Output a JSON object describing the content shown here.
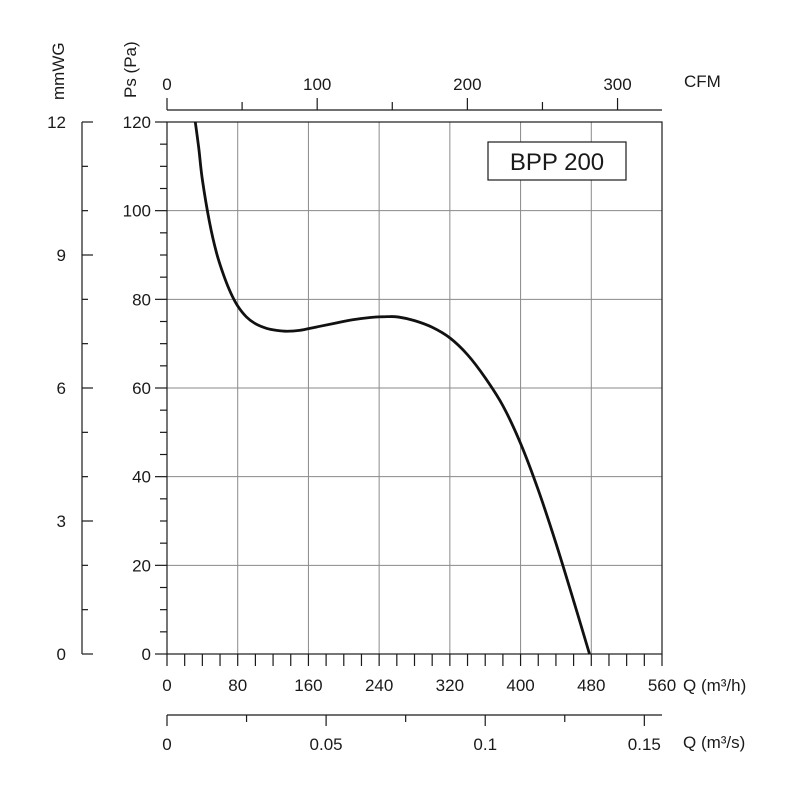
{
  "chart_data": {
    "type": "line",
    "title": "BPP 200",
    "series": [
      {
        "name": "BPP 200",
        "x": [
          32,
          36,
          40,
          48,
          56,
          64,
          72,
          80,
          90,
          100,
          112,
          124,
          136,
          150,
          170,
          190,
          210,
          230,
          250,
          262,
          280,
          300,
          320,
          340,
          360,
          380,
          400,
          420,
          440,
          460,
          478
        ],
        "y": [
          120,
          114,
          107,
          97.5,
          90.5,
          85.5,
          81.5,
          78.5,
          76,
          74.5,
          73.5,
          73,
          72.8,
          73,
          73.8,
          74.6,
          75.4,
          75.9,
          76.1,
          76,
          75.2,
          73.7,
          71.3,
          67.5,
          62.3,
          56,
          47.5,
          37,
          25,
          12,
          0
        ]
      }
    ],
    "left_axis": {
      "label": "Ps (Pa)",
      "ylim": [
        0,
        120
      ],
      "ticks": [
        0,
        20,
        40,
        60,
        80,
        100,
        120
      ]
    },
    "left_outer_axis": {
      "label": "mmWG",
      "range": [
        0,
        12
      ],
      "ticks": [
        "0",
        "3",
        "6",
        "9",
        "12"
      ]
    },
    "bottom_axis": {
      "label": "Q (m³/h)",
      "xlim": [
        0,
        560
      ],
      "ticks": [
        "0",
        "80",
        "160",
        "240",
        "320",
        "400",
        "480",
        "560"
      ]
    },
    "bottom_outer_axis": {
      "label": "Q (m³/s)",
      "range": [
        0,
        0.155556
      ],
      "ticks": [
        {
          "value": 0,
          "label": "0"
        },
        {
          "value": 0.05,
          "label": "0.05"
        },
        {
          "value": 0.1,
          "label": "0.1"
        },
        {
          "value": 0.15,
          "label": "0.15"
        }
      ]
    },
    "top_axis": {
      "label": "CFM",
      "range": [
        0,
        329.6
      ],
      "ticks": [
        {
          "value": 0,
          "label": "0"
        },
        {
          "value": 100,
          "label": "100"
        },
        {
          "value": 200,
          "label": "200"
        },
        {
          "value": 300,
          "label": "300"
        }
      ]
    },
    "grid": true
  }
}
